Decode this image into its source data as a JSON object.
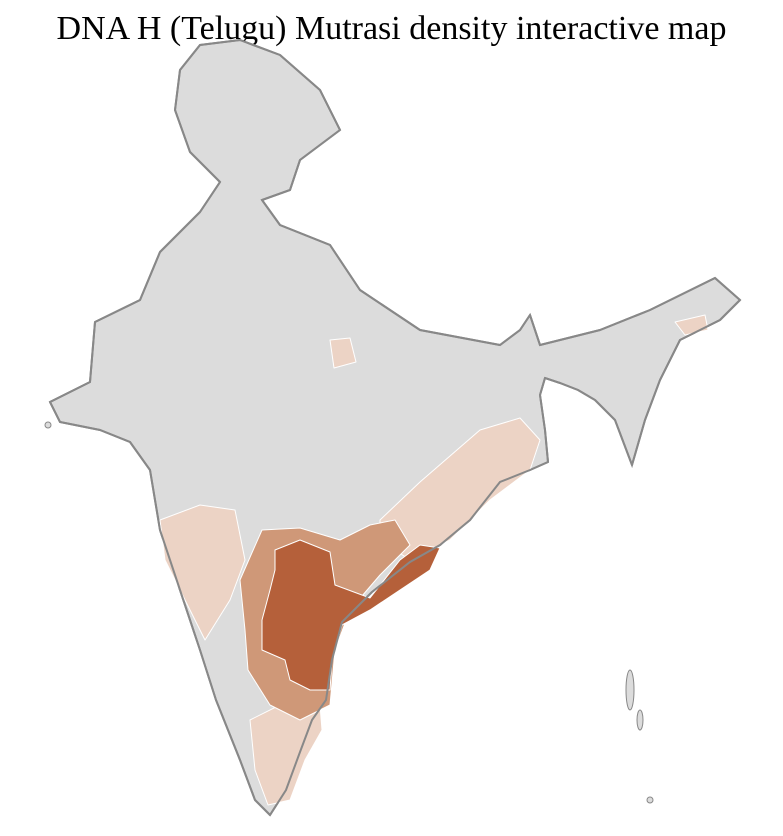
{
  "title": "DNA H (Telugu) Mutrasi density interactive map",
  "map": {
    "region": "India districts",
    "colors": {
      "none": "#dcdcdc",
      "low": "#ecd3c5",
      "medium": "#cf9878",
      "high": "#b5603a",
      "state_border": "#888888",
      "district_border": "#ffffff"
    }
  }
}
